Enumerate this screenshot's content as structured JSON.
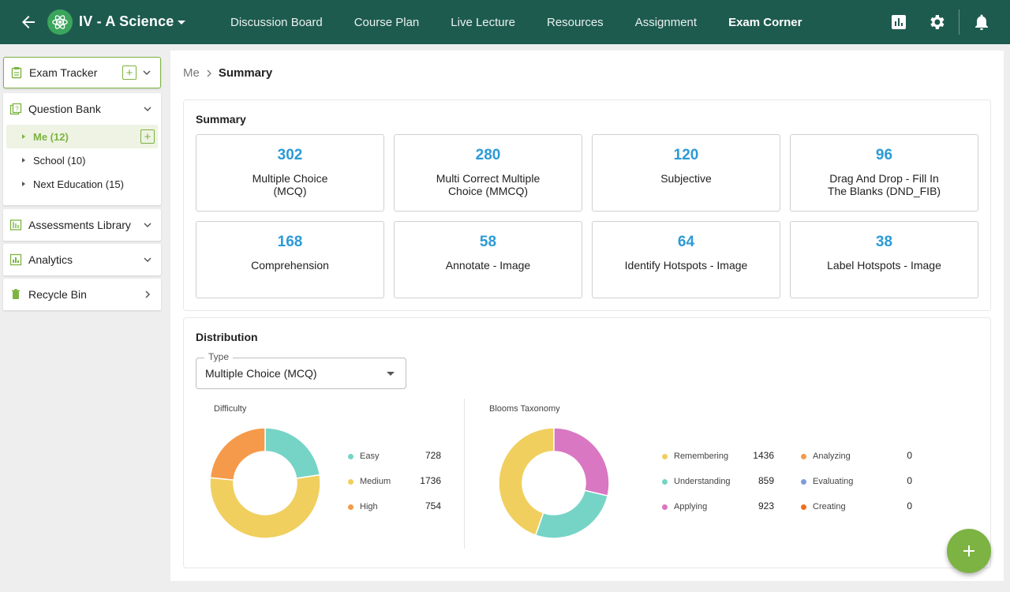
{
  "header": {
    "class_name": "IV - A Science",
    "nav": [
      "Discussion Board",
      "Course Plan",
      "Live Lecture",
      "Resources",
      "Assignment",
      "Exam Corner"
    ],
    "active_nav": "Exam Corner",
    "icons": [
      "back-arrow-icon",
      "atom-logo-icon",
      "caret-down-icon",
      "bar-chart-icon",
      "gear-icon",
      "bell-icon"
    ],
    "color": "#1e5b4f"
  },
  "sidebar": {
    "exam_tracker": "Exam Tracker",
    "question_bank": "Question Bank",
    "question_bank_items": [
      "Me (12)",
      "School (10)",
      "Next Education (15)"
    ],
    "assessments_library": "Assessments Library",
    "analytics": "Analytics",
    "recycle_bin": "Recycle Bin",
    "accent": "#7cb342"
  },
  "breadcrumb": {
    "parent": "Me",
    "current": "Summary"
  },
  "summary": {
    "title": "Summary",
    "cards": [
      {
        "count": "302",
        "label": "Multiple Choice (MCQ)"
      },
      {
        "count": "280",
        "label": "Multi Correct Multiple Choice (MMCQ)"
      },
      {
        "count": "120",
        "label": "Subjective"
      },
      {
        "count": "96",
        "label": "Drag And Drop - Fill In The Blanks (DND_FIB)"
      },
      {
        "count": "168",
        "label": "Comprehension"
      },
      {
        "count": "58",
        "label": "Annotate - Image"
      },
      {
        "count": "64",
        "label": "Identify Hotspots - Image"
      },
      {
        "count": "38",
        "label": "Label Hotspots - Image"
      }
    ]
  },
  "distribution": {
    "title": "Distribution",
    "type_legend": "Type",
    "type_value": "Multiple Choice (MCQ)"
  },
  "chart_data": [
    {
      "type": "pie",
      "title": "Difficulty",
      "categories": [
        "Easy",
        "Medium",
        "High"
      ],
      "values": [
        728,
        1736,
        754
      ],
      "colors": [
        "#76d4c6",
        "#f0cf5f",
        "#f59a4a"
      ]
    },
    {
      "type": "pie",
      "title": "Blooms Taxonomy",
      "categories": [
        "Remembering",
        "Understanding",
        "Applying",
        "Analyzing",
        "Evaluating",
        "Creating"
      ],
      "values": [
        1436,
        859,
        923,
        0,
        0,
        0
      ],
      "colors": [
        "#f0cf5f",
        "#76d4c6",
        "#d977c2",
        "#f59a4a",
        "#7f9ddc",
        "#f0701f"
      ]
    }
  ],
  "fab": {
    "icon": "plus-icon",
    "color": "#7cb342"
  }
}
